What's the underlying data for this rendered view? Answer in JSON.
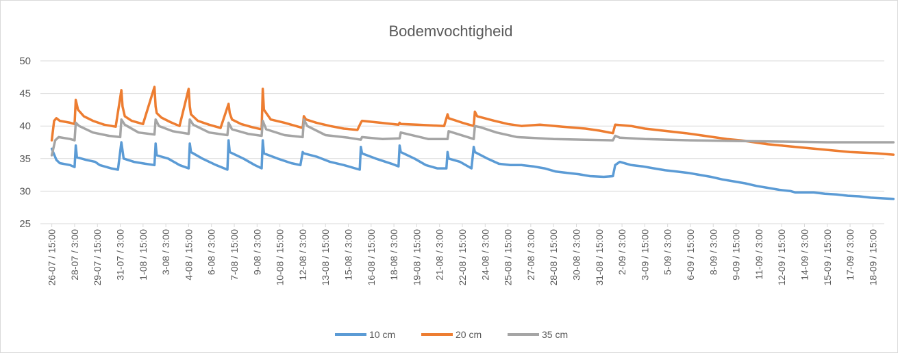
{
  "chart_data": {
    "type": "line",
    "title": "Bodemvochtigheid",
    "xlabel": "",
    "ylabel": "",
    "ylim": [
      25,
      50
    ],
    "y_ticks": [
      25,
      30,
      35,
      40,
      45,
      50
    ],
    "grid": "horizontal",
    "legend_position": "bottom",
    "categories": [
      "26-07 / 15:00",
      "28-07 / 3:00",
      "29-07 / 15:00",
      "31-07 / 3:00",
      "1-08 / 15:00",
      "3-08 / 3:00",
      "4-08 / 15:00",
      "6-08 / 3:00",
      "7-08 / 15:00",
      "9-08 / 3:00",
      "10-08 / 15:00",
      "12-08 / 3:00",
      "13-08 / 15:00",
      "15-08 / 3:00",
      "16-08 / 15:00",
      "18-08 / 3:00",
      "19-08 / 15:00",
      "21-08 / 3:00",
      "22-08 / 15:00",
      "24-08 / 3:00",
      "25-08 / 15:00",
      "27-08 / 3:00",
      "28-08 / 15:00",
      "30-08 / 3:00",
      "31-08 / 15:00",
      "2-09 / 3:00",
      "3-09 / 15:00",
      "5-09 / 3:00",
      "6-09 / 15:00",
      "8-09 / 3:00",
      "9-09 / 15:00",
      "11-09 / 3:00",
      "12-09 / 15:00",
      "14-09 / 3:00",
      "15-09 / 15:00",
      "17-09 / 3:00",
      "18-09 / 15:00"
    ],
    "series": [
      {
        "name": "10 cm",
        "color": "#5b9bd5",
        "x": [
          0,
          0.2,
          0.35,
          0.8,
          1.0,
          1.05,
          1.1,
          1.5,
          1.9,
          2.1,
          2.6,
          2.9,
          3.05,
          3.15,
          3.6,
          4.1,
          4.5,
          4.55,
          4.6,
          5.1,
          5.6,
          6.0,
          6.05,
          6.1,
          6.6,
          7.2,
          7.7,
          7.75,
          7.8,
          8.4,
          8.9,
          9.2,
          9.25,
          9.3,
          9.9,
          10.5,
          10.9,
          11.0,
          11.05,
          11.6,
          12.2,
          12.8,
          13.5,
          13.55,
          13.6,
          14.2,
          14.9,
          15.2,
          15.25,
          15.3,
          15.9,
          16.4,
          16.9,
          17.3,
          17.35,
          17.4,
          17.9,
          18.4,
          18.5,
          18.55,
          19.1,
          19.6,
          20.1,
          20.6,
          21.1,
          21.6,
          22.1,
          22.6,
          23.1,
          23.6,
          24.2,
          24.6,
          24.7,
          24.9,
          25.4,
          25.9,
          26.4,
          26.9,
          27.4,
          27.9,
          28.4,
          28.9,
          29.4,
          29.9,
          30.4,
          30.9,
          31.4,
          31.9,
          32.4,
          32.6,
          33.4,
          33.9,
          34.4,
          34.9,
          35.4,
          35.9,
          36.4,
          36.9
        ],
        "y": [
          36.5,
          34.8,
          34.3,
          34.0,
          33.7,
          37.0,
          35.2,
          34.8,
          34.5,
          34.0,
          33.5,
          33.3,
          37.5,
          35.0,
          34.5,
          34.2,
          34.0,
          37.3,
          35.5,
          35.0,
          34.0,
          33.5,
          37.3,
          36.0,
          35.0,
          34.0,
          33.3,
          37.8,
          36.0,
          35.0,
          34.0,
          33.5,
          37.8,
          35.8,
          35.0,
          34.3,
          34.0,
          36.0,
          35.8,
          35.3,
          34.5,
          34.0,
          33.3,
          36.8,
          35.8,
          35.0,
          34.2,
          33.8,
          37.0,
          36.0,
          35.0,
          34.0,
          33.5,
          33.5,
          36.0,
          35.0,
          34.5,
          33.5,
          36.8,
          36.0,
          35.0,
          34.2,
          34.0,
          34.0,
          33.8,
          33.5,
          33.0,
          32.8,
          32.6,
          32.3,
          32.2,
          32.3,
          34.0,
          34.5,
          34.0,
          33.8,
          33.5,
          33.2,
          33.0,
          32.8,
          32.5,
          32.2,
          31.8,
          31.5,
          31.2,
          30.8,
          30.5,
          30.2,
          30.0,
          29.8,
          29.8,
          29.6,
          29.5,
          29.3,
          29.2,
          29.0,
          28.9,
          28.8
        ]
      },
      {
        "name": "20 cm",
        "color": "#ed7d31",
        "x": [
          0,
          0.1,
          0.2,
          0.35,
          0.8,
          1.0,
          1.05,
          1.15,
          1.4,
          1.8,
          2.3,
          2.8,
          3.05,
          3.1,
          3.2,
          3.5,
          4.0,
          4.5,
          4.55,
          4.6,
          4.8,
          5.2,
          5.6,
          6.0,
          6.05,
          6.1,
          6.4,
          6.9,
          7.4,
          7.75,
          7.8,
          7.9,
          8.3,
          8.8,
          9.2,
          9.25,
          9.3,
          9.6,
          10.2,
          10.7,
          11.0,
          11.05,
          11.15,
          11.6,
          12.2,
          12.8,
          13.4,
          13.55,
          13.6,
          14.4,
          15.2,
          15.25,
          15.3,
          16.0,
          16.6,
          17.2,
          17.35,
          17.4,
          18.0,
          18.5,
          18.55,
          18.65,
          19.4,
          20.0,
          20.6,
          21.4,
          22.4,
          23.4,
          24.0,
          24.6,
          24.7,
          25.4,
          26.0,
          27.0,
          27.8,
          28.4,
          29.0,
          29.6,
          30.2,
          30.8,
          31.4,
          32.0,
          32.6,
          33.2,
          33.8,
          34.4,
          35.0,
          35.6,
          36.2,
          36.9
        ],
        "y": [
          37.8,
          40.8,
          41.2,
          40.8,
          40.5,
          40.3,
          44.0,
          42.5,
          41.5,
          40.8,
          40.2,
          39.9,
          45.5,
          43.0,
          41.5,
          40.8,
          40.3,
          46.0,
          43.0,
          42.0,
          41.3,
          40.6,
          40.0,
          45.7,
          43.0,
          41.8,
          40.8,
          40.2,
          39.7,
          43.4,
          42.0,
          41.0,
          40.3,
          39.8,
          39.5,
          45.7,
          42.5,
          41.0,
          40.5,
          40.0,
          39.7,
          41.5,
          41.0,
          40.5,
          40.0,
          39.6,
          39.4,
          40.5,
          40.8,
          40.5,
          40.2,
          40.5,
          40.3,
          40.2,
          40.1,
          40.0,
          41.8,
          41.2,
          40.5,
          40.0,
          42.2,
          41.5,
          40.8,
          40.3,
          40.0,
          40.2,
          39.9,
          39.6,
          39.3,
          38.9,
          40.2,
          40.0,
          39.6,
          39.2,
          38.9,
          38.6,
          38.3,
          38.0,
          37.8,
          37.5,
          37.2,
          37.0,
          36.8,
          36.6,
          36.4,
          36.2,
          36.0,
          35.9,
          35.8,
          35.6
        ]
      },
      {
        "name": "35 cm",
        "color": "#a5a5a5",
        "x": [
          0,
          0.15,
          0.3,
          0.8,
          1.0,
          1.05,
          1.2,
          1.8,
          2.5,
          3.0,
          3.05,
          3.2,
          3.8,
          4.5,
          4.55,
          4.7,
          5.3,
          6.0,
          6.05,
          6.2,
          6.9,
          7.7,
          7.75,
          7.9,
          8.6,
          9.2,
          9.25,
          9.4,
          10.2,
          11.0,
          11.05,
          11.2,
          12.0,
          13.0,
          13.55,
          13.6,
          14.5,
          15.25,
          15.3,
          16.5,
          17.35,
          17.4,
          18.5,
          18.55,
          18.8,
          19.5,
          20.4,
          22.0,
          24.6,
          24.7,
          24.9,
          26.0,
          28.0,
          30.0,
          32.0,
          34.0,
          36.9
        ],
        "y": [
          35.5,
          37.8,
          38.3,
          38.0,
          37.8,
          40.5,
          40.0,
          39.0,
          38.5,
          38.3,
          41.0,
          40.2,
          39.0,
          38.7,
          41.0,
          40.0,
          39.2,
          38.8,
          41.0,
          40.2,
          39.0,
          38.6,
          40.5,
          39.5,
          38.8,
          38.5,
          40.8,
          39.5,
          38.6,
          38.3,
          41.0,
          40.0,
          38.6,
          38.2,
          37.9,
          38.3,
          38.0,
          38.1,
          39.0,
          38.0,
          38.0,
          39.2,
          38.0,
          40.0,
          39.8,
          39.0,
          38.3,
          38.0,
          37.8,
          38.5,
          38.2,
          38.0,
          37.8,
          37.7,
          37.6,
          37.5,
          37.5
        ]
      }
    ]
  }
}
